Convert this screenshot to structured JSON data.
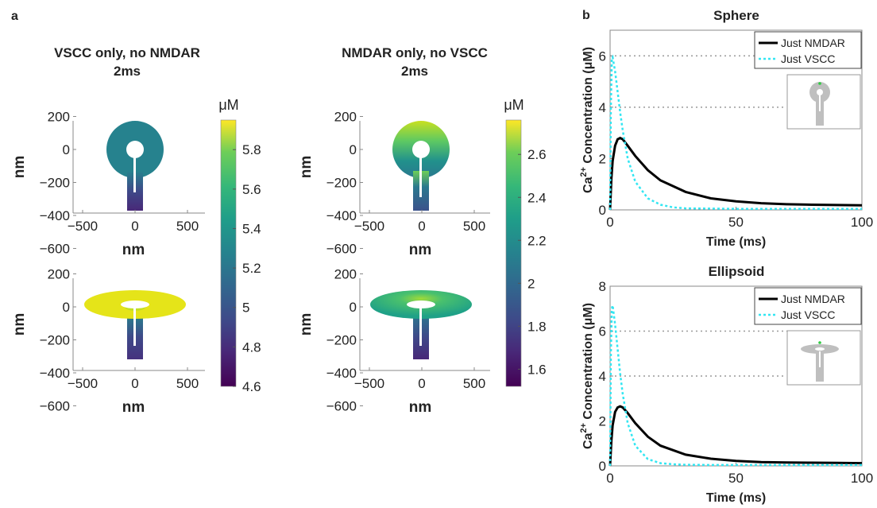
{
  "panel_labels": {
    "a": "a",
    "b": "b"
  },
  "colorbar_unit": "μM",
  "chart_data": [
    {
      "type": "heatmap",
      "title": "VSCC only, no NMDAR",
      "subtitle": "2ms",
      "xlabel": "nm",
      "ylabel": "nm",
      "xticks": [
        -500,
        0,
        500
      ],
      "yticks": [
        200,
        0,
        -200,
        -400,
        -600
      ],
      "geometries": [
        "Sphere",
        "Ellipsoid"
      ],
      "colorbar": {
        "unit": "μM",
        "ticks": [
          5.8,
          5.6,
          5.4,
          5.2,
          5,
          4.8,
          4.6
        ],
        "range": [
          4.6,
          5.95
        ]
      }
    },
    {
      "type": "heatmap",
      "title": "NMDAR only, no VSCC",
      "subtitle": "2ms",
      "xlabel": "nm",
      "ylabel": "nm",
      "xticks": [
        -500,
        0,
        500
      ],
      "yticks": [
        200,
        0,
        -200,
        -400,
        -600
      ],
      "geometries": [
        "Sphere",
        "Ellipsoid"
      ],
      "colorbar": {
        "unit": "μM",
        "ticks": [
          2.6,
          2.4,
          2.2,
          2,
          1.8,
          1.6
        ],
        "range": [
          1.52,
          2.76
        ]
      }
    },
    {
      "type": "line",
      "title": "Sphere",
      "xlabel": "Time (ms)",
      "ylabel": "Ca2+ Concentration (μM)",
      "xlim": [
        0,
        100
      ],
      "ylim": [
        0,
        7
      ],
      "xticks": [
        0,
        50,
        100
      ],
      "yticks": [
        0,
        2,
        4,
        6
      ],
      "reference_lines": [
        6,
        4
      ],
      "legend": "top-right",
      "series": [
        {
          "name": "Just NMDAR",
          "color": "#000000",
          "style": "solid",
          "x": [
            0,
            0.5,
            1,
            2,
            3,
            4,
            5,
            7,
            10,
            15,
            20,
            30,
            40,
            50,
            60,
            70,
            80,
            90,
            100
          ],
          "y": [
            0,
            1.2,
            1.9,
            2.5,
            2.75,
            2.8,
            2.75,
            2.5,
            2.1,
            1.55,
            1.15,
            0.7,
            0.45,
            0.33,
            0.26,
            0.22,
            0.2,
            0.19,
            0.18
          ]
        },
        {
          "name": "Just VSCC",
          "color": "#33e6f2",
          "style": "dotted",
          "x": [
            0,
            0.3,
            0.7,
            1,
            2,
            3,
            4,
            5,
            7,
            10,
            15,
            20,
            25,
            30,
            40,
            50,
            60,
            80,
            100
          ],
          "y": [
            0,
            4,
            5.9,
            5.95,
            5.4,
            4.6,
            3.8,
            3.1,
            2.0,
            1.1,
            0.45,
            0.2,
            0.1,
            0.06,
            0.05,
            0.04,
            0.04,
            0.04,
            0.04
          ]
        }
      ]
    },
    {
      "type": "line",
      "title": "Ellipsoid",
      "xlabel": "Time (ms)",
      "ylabel": "Ca2+ Concentration (μM)",
      "xlim": [
        0,
        100
      ],
      "ylim": [
        0,
        8
      ],
      "xticks": [
        0,
        50,
        100
      ],
      "yticks": [
        0,
        2,
        4,
        6,
        8
      ],
      "reference_lines": [
        6,
        4
      ],
      "legend": "top-right",
      "series": [
        {
          "name": "Just NMDAR",
          "color": "#000000",
          "style": "solid",
          "x": [
            0,
            0.5,
            1,
            2,
            3,
            4,
            5,
            7,
            10,
            15,
            20,
            30,
            40,
            50,
            60,
            70,
            80,
            90,
            100
          ],
          "y": [
            0,
            1.1,
            1.8,
            2.4,
            2.6,
            2.65,
            2.6,
            2.35,
            1.9,
            1.3,
            0.9,
            0.5,
            0.32,
            0.22,
            0.17,
            0.15,
            0.14,
            0.13,
            0.12
          ]
        },
        {
          "name": "Just VSCC",
          "color": "#33e6f2",
          "style": "dotted",
          "x": [
            0,
            0.3,
            0.7,
            1,
            2,
            3,
            4,
            5,
            7,
            10,
            15,
            20,
            25,
            30,
            40,
            50,
            60,
            80,
            100
          ],
          "y": [
            0,
            5,
            7.0,
            7.15,
            6.3,
            5.2,
            4.1,
            3.2,
            1.9,
            0.9,
            0.3,
            0.12,
            0.07,
            0.05,
            0.04,
            0.04,
            0.04,
            0.04,
            0.04
          ]
        }
      ]
    }
  ]
}
